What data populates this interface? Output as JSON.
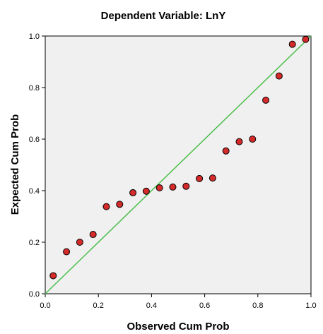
{
  "chart_data": {
    "type": "scatter",
    "title": "Dependent Variable: LnY",
    "xlabel": "Observed Cum Prob",
    "ylabel": "Expected Cum Prob",
    "xlim": [
      0,
      1
    ],
    "ylim": [
      0,
      1
    ],
    "x_ticks": [
      "0.0",
      "0.2",
      "0.4",
      "0.6",
      "0.8",
      "1.0"
    ],
    "y_ticks": [
      "0.0",
      "0.2",
      "0.4",
      "0.6",
      "0.8",
      "1.0"
    ],
    "grid": false,
    "reference_line": {
      "from": [
        0,
        0
      ],
      "to": [
        1,
        1
      ],
      "color": "#4cbf4c"
    },
    "marker_color": "#d42a2a",
    "plot_background": "#f0f0f0",
    "points": [
      {
        "x": 0.03,
        "y": 0.07
      },
      {
        "x": 0.08,
        "y": 0.163
      },
      {
        "x": 0.13,
        "y": 0.2
      },
      {
        "x": 0.18,
        "y": 0.23
      },
      {
        "x": 0.23,
        "y": 0.338
      },
      {
        "x": 0.28,
        "y": 0.347
      },
      {
        "x": 0.33,
        "y": 0.392
      },
      {
        "x": 0.38,
        "y": 0.398
      },
      {
        "x": 0.43,
        "y": 0.411
      },
      {
        "x": 0.48,
        "y": 0.414
      },
      {
        "x": 0.53,
        "y": 0.417
      },
      {
        "x": 0.58,
        "y": 0.447
      },
      {
        "x": 0.63,
        "y": 0.449
      },
      {
        "x": 0.68,
        "y": 0.554
      },
      {
        "x": 0.73,
        "y": 0.59
      },
      {
        "x": 0.78,
        "y": 0.6
      },
      {
        "x": 0.83,
        "y": 0.751
      },
      {
        "x": 0.88,
        "y": 0.845
      },
      {
        "x": 0.93,
        "y": 0.968
      },
      {
        "x": 0.98,
        "y": 0.987
      }
    ]
  }
}
